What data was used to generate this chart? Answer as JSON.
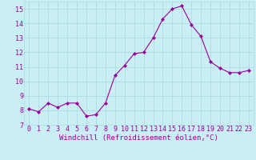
{
  "x": [
    0,
    1,
    2,
    3,
    4,
    5,
    6,
    7,
    8,
    9,
    10,
    11,
    12,
    13,
    14,
    15,
    16,
    17,
    18,
    19,
    20,
    21,
    22,
    23
  ],
  "y": [
    8.1,
    7.9,
    8.5,
    8.2,
    8.5,
    8.5,
    7.6,
    7.7,
    8.5,
    10.4,
    11.1,
    11.9,
    12.0,
    13.0,
    14.3,
    15.0,
    15.2,
    13.9,
    13.1,
    11.35,
    10.9,
    10.6,
    10.6,
    10.75
  ],
  "line_color": "#990099",
  "marker": "D",
  "marker_size": 2.0,
  "bg_color": "#c9eef5",
  "grid_color": "#aadddd",
  "xlabel": "Windchill (Refroidissement éolien,°C)",
  "xlabel_color": "#990099",
  "xlabel_fontsize": 6.5,
  "tick_fontsize": 6.0,
  "tick_color": "#990099",
  "ylim": [
    7,
    15.5
  ],
  "yticks": [
    7,
    8,
    9,
    10,
    11,
    12,
    13,
    14,
    15
  ],
  "xlim": [
    -0.5,
    23.5
  ],
  "xticks": [
    0,
    1,
    2,
    3,
    4,
    5,
    6,
    7,
    8,
    9,
    10,
    11,
    12,
    13,
    14,
    15,
    16,
    17,
    18,
    19,
    20,
    21,
    22,
    23
  ]
}
